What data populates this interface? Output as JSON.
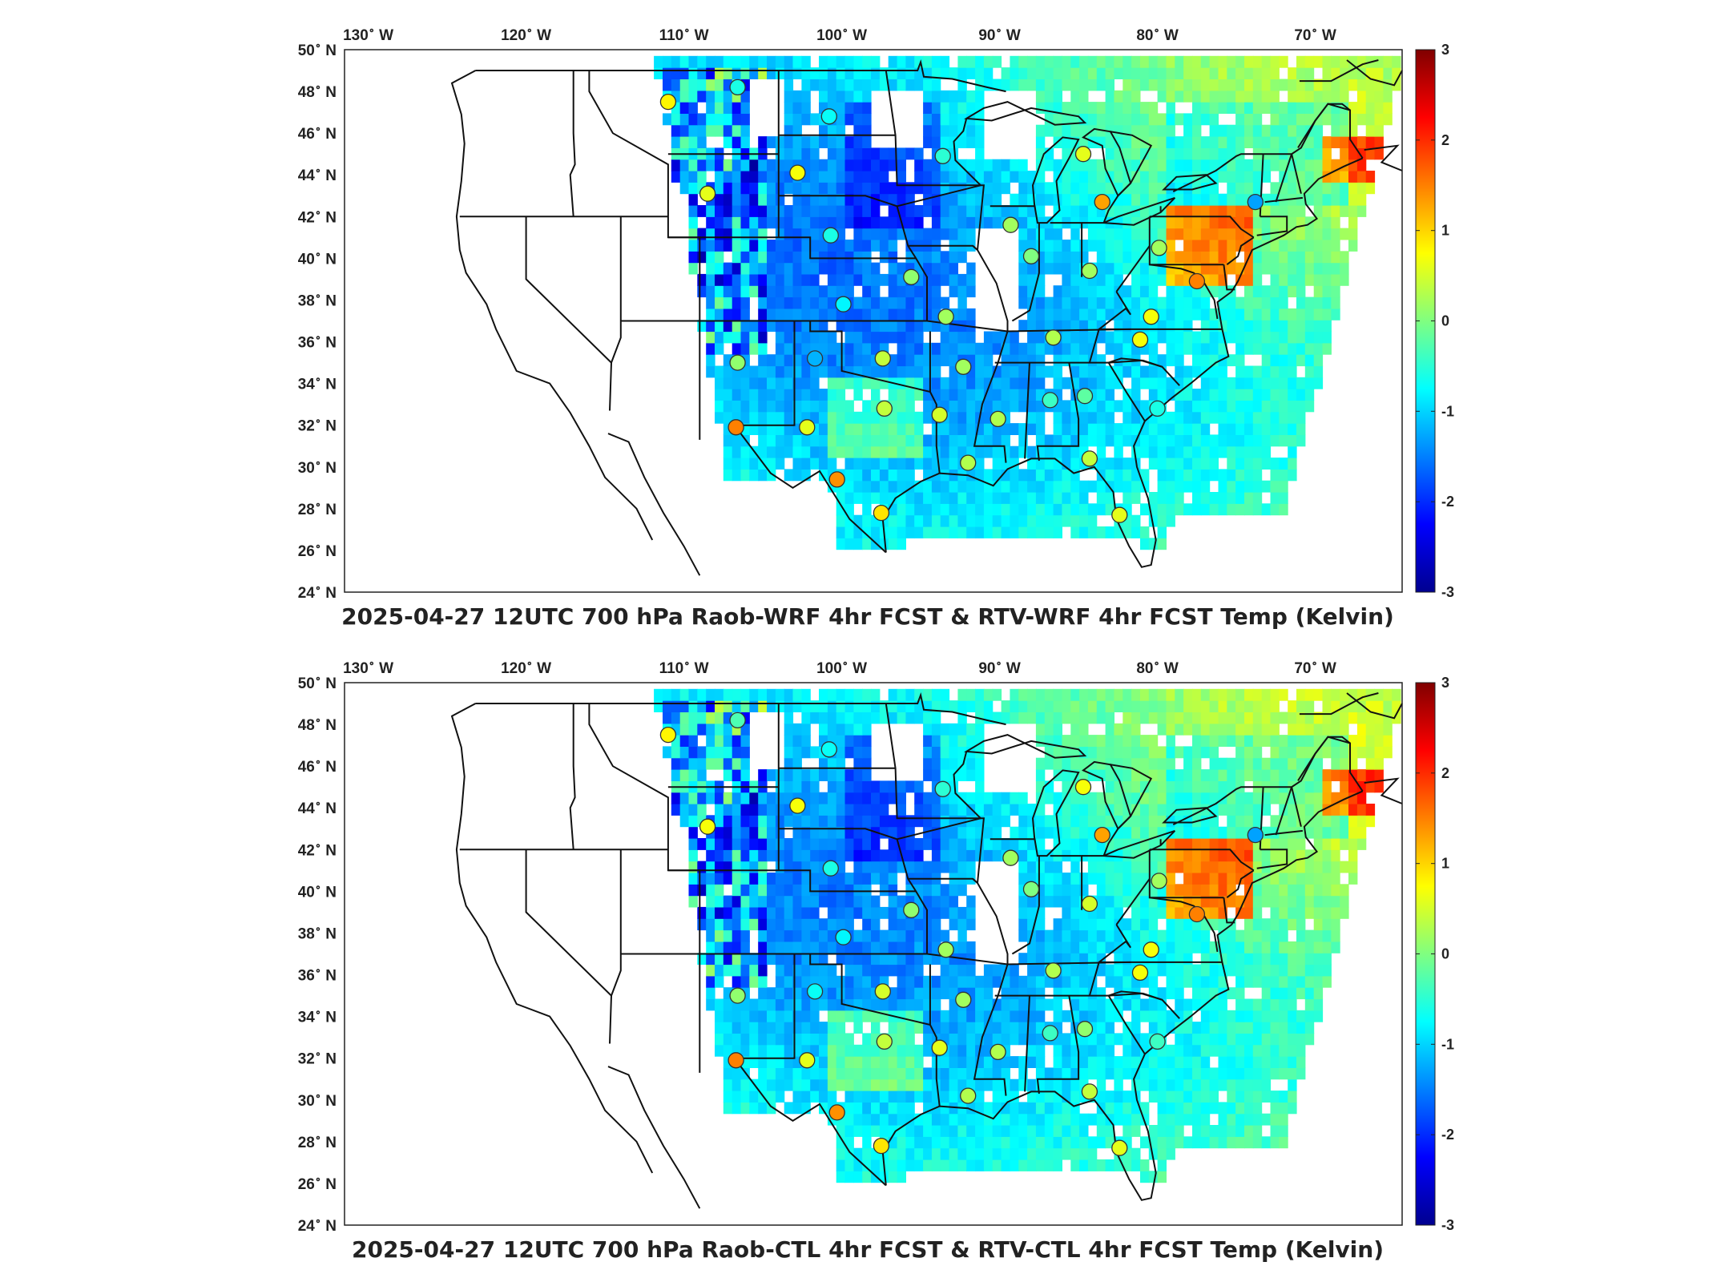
{
  "panels": [
    {
      "title": "2025-04-27 12UTC 700 hPa Raob-WRF 4hr FCST & RTV-WRF 4hr FCST Temp (Kelvin)",
      "lon_labels": [
        "130",
        "120",
        "110",
        "100",
        "90",
        "80",
        "70"
      ],
      "lon_suffix": "W",
      "lat_labels": [
        "50",
        "48",
        "46",
        "44",
        "42",
        "40",
        "38",
        "36",
        "34",
        "32",
        "30",
        "28",
        "26",
        "24"
      ],
      "lat_suffix": "N",
      "colorbar_ticks": [
        "3",
        "2",
        "1",
        "0",
        "-1",
        "-2",
        "-3"
      ],
      "stations": [
        {
          "lon": -111.0,
          "lat": 47.5,
          "v": 0.8
        },
        {
          "lon": -106.6,
          "lat": 48.2,
          "v": -0.6
        },
        {
          "lon": -100.8,
          "lat": 46.8,
          "v": -0.7
        },
        {
          "lon": -93.6,
          "lat": 44.9,
          "v": -0.5
        },
        {
          "lon": -102.8,
          "lat": 44.1,
          "v": 0.7
        },
        {
          "lon": -108.5,
          "lat": 43.1,
          "v": 0.6
        },
        {
          "lon": -84.7,
          "lat": 45.0,
          "v": 0.6
        },
        {
          "lon": -83.5,
          "lat": 42.7,
          "v": 1.3
        },
        {
          "lon": -73.8,
          "lat": 42.7,
          "v": -1.3
        },
        {
          "lon": -89.3,
          "lat": 41.6,
          "v": 0.2
        },
        {
          "lon": -100.7,
          "lat": 41.1,
          "v": -0.6
        },
        {
          "lon": -79.9,
          "lat": 40.5,
          "v": 0.2
        },
        {
          "lon": -88.0,
          "lat": 40.1,
          "v": 0.0
        },
        {
          "lon": -84.3,
          "lat": 39.4,
          "v": 0.2
        },
        {
          "lon": -77.5,
          "lat": 38.9,
          "v": 1.5
        },
        {
          "lon": -95.6,
          "lat": 39.1,
          "v": 0.1
        },
        {
          "lon": -99.9,
          "lat": 37.8,
          "v": -0.8
        },
        {
          "lon": -93.4,
          "lat": 37.2,
          "v": 0.2
        },
        {
          "lon": -80.4,
          "lat": 37.2,
          "v": 0.7
        },
        {
          "lon": -86.6,
          "lat": 36.2,
          "v": 0.3
        },
        {
          "lon": -81.1,
          "lat": 36.1,
          "v": 0.7
        },
        {
          "lon": -101.7,
          "lat": 35.2,
          "v": -1.2
        },
        {
          "lon": -97.4,
          "lat": 35.2,
          "v": 0.4
        },
        {
          "lon": -92.3,
          "lat": 34.8,
          "v": 0.2
        },
        {
          "lon": -106.6,
          "lat": 35.0,
          "v": 0.1
        },
        {
          "lon": -86.8,
          "lat": 33.2,
          "v": -0.4
        },
        {
          "lon": -84.6,
          "lat": 33.4,
          "v": -0.2
        },
        {
          "lon": -80.0,
          "lat": 32.8,
          "v": -0.6
        },
        {
          "lon": -97.3,
          "lat": 32.8,
          "v": 0.4
        },
        {
          "lon": -93.8,
          "lat": 32.5,
          "v": 0.5
        },
        {
          "lon": -90.1,
          "lat": 32.3,
          "v": 0.3
        },
        {
          "lon": -102.2,
          "lat": 31.9,
          "v": 0.6
        },
        {
          "lon": -106.7,
          "lat": 31.9,
          "v": 1.5
        },
        {
          "lon": -92.0,
          "lat": 30.2,
          "v": 0.3
        },
        {
          "lon": -84.3,
          "lat": 30.4,
          "v": 0.4
        },
        {
          "lon": -100.3,
          "lat": 29.4,
          "v": 1.4
        },
        {
          "lon": -97.5,
          "lat": 27.8,
          "v": 0.9
        },
        {
          "lon": -82.4,
          "lat": 27.7,
          "v": 0.6
        }
      ]
    },
    {
      "title": "2025-04-27 12UTC 700 hPa Raob-CTL 4hr FCST & RTV-CTL 4hr FCST Temp (Kelvin)",
      "lon_labels": [
        "130",
        "120",
        "110",
        "100",
        "90",
        "80",
        "70"
      ],
      "lon_suffix": "W",
      "lat_labels": [
        "50",
        "48",
        "46",
        "44",
        "42",
        "40",
        "38",
        "36",
        "34",
        "32",
        "30",
        "28",
        "26",
        "24"
      ],
      "lat_suffix": "N",
      "colorbar_ticks": [
        "3",
        "2",
        "1",
        "0",
        "-1",
        "-2",
        "-3"
      ],
      "stations": [
        {
          "lon": -111.0,
          "lat": 47.5,
          "v": 0.8
        },
        {
          "lon": -106.6,
          "lat": 48.2,
          "v": -0.3
        },
        {
          "lon": -100.8,
          "lat": 46.8,
          "v": -0.7
        },
        {
          "lon": -93.6,
          "lat": 44.9,
          "v": -0.5
        },
        {
          "lon": -102.8,
          "lat": 44.1,
          "v": 0.7
        },
        {
          "lon": -108.5,
          "lat": 43.1,
          "v": 0.7
        },
        {
          "lon": -84.7,
          "lat": 45.0,
          "v": 0.7
        },
        {
          "lon": -83.5,
          "lat": 42.7,
          "v": 1.3
        },
        {
          "lon": -73.8,
          "lat": 42.7,
          "v": -1.3
        },
        {
          "lon": -89.3,
          "lat": 41.6,
          "v": 0.2
        },
        {
          "lon": -100.7,
          "lat": 41.1,
          "v": -0.6
        },
        {
          "lon": -79.9,
          "lat": 40.5,
          "v": 0.2
        },
        {
          "lon": -88.0,
          "lat": 40.1,
          "v": 0.0
        },
        {
          "lon": -84.3,
          "lat": 39.4,
          "v": 0.5
        },
        {
          "lon": -77.5,
          "lat": 38.9,
          "v": 1.5
        },
        {
          "lon": -95.6,
          "lat": 39.1,
          "v": 0.1
        },
        {
          "lon": -99.9,
          "lat": 37.8,
          "v": -0.8
        },
        {
          "lon": -93.4,
          "lat": 37.2,
          "v": 0.2
        },
        {
          "lon": -80.4,
          "lat": 37.2,
          "v": 0.7
        },
        {
          "lon": -86.6,
          "lat": 36.2,
          "v": 0.3
        },
        {
          "lon": -81.1,
          "lat": 36.1,
          "v": 0.7
        },
        {
          "lon": -101.7,
          "lat": 35.2,
          "v": -0.7
        },
        {
          "lon": -97.4,
          "lat": 35.2,
          "v": 0.5
        },
        {
          "lon": -92.3,
          "lat": 34.8,
          "v": 0.2
        },
        {
          "lon": -106.6,
          "lat": 35.0,
          "v": 0.1
        },
        {
          "lon": -86.8,
          "lat": 33.2,
          "v": -0.4
        },
        {
          "lon": -84.6,
          "lat": 33.4,
          "v": 0.1
        },
        {
          "lon": -80.0,
          "lat": 32.8,
          "v": -0.4
        },
        {
          "lon": -97.3,
          "lat": 32.8,
          "v": 0.4
        },
        {
          "lon": -93.8,
          "lat": 32.5,
          "v": 0.6
        },
        {
          "lon": -90.1,
          "lat": 32.3,
          "v": 0.3
        },
        {
          "lon": -102.2,
          "lat": 31.9,
          "v": 0.6
        },
        {
          "lon": -106.7,
          "lat": 31.9,
          "v": 1.5
        },
        {
          "lon": -92.0,
          "lat": 30.2,
          "v": 0.3
        },
        {
          "lon": -84.3,
          "lat": 30.4,
          "v": 0.4
        },
        {
          "lon": -100.3,
          "lat": 29.4,
          "v": 1.4
        },
        {
          "lon": -97.5,
          "lat": 27.8,
          "v": 0.9
        },
        {
          "lon": -82.4,
          "lat": 27.7,
          "v": 0.6
        }
      ]
    }
  ],
  "colorscale": "jet",
  "value_range": [
    -3,
    3
  ],
  "background": "#ffffff",
  "border_color": "#000000"
}
